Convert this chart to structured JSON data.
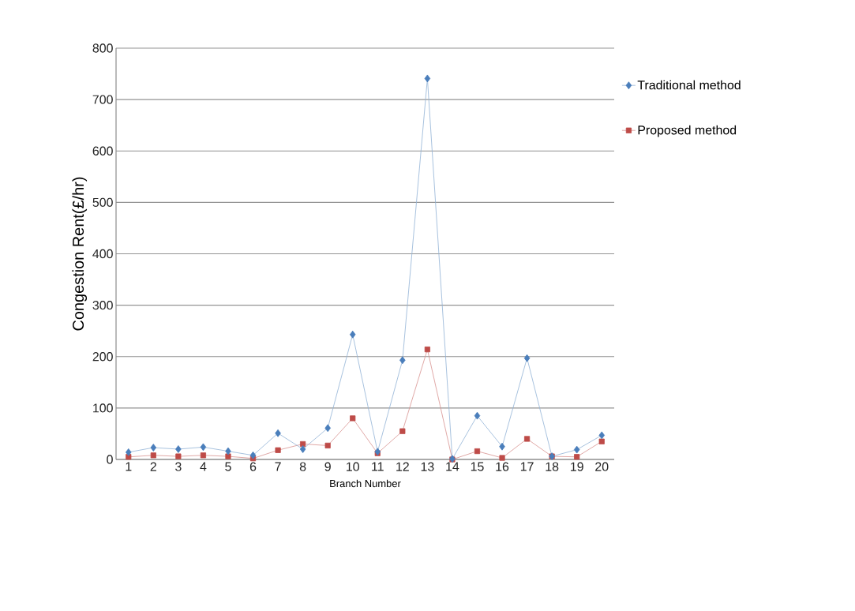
{
  "chart_data": {
    "type": "line",
    "xlabel": "Branch Number",
    "ylabel": "Congestion Rent(£/hr)",
    "categories": [
      "1",
      "2",
      "3",
      "4",
      "5",
      "6",
      "7",
      "8",
      "9",
      "10",
      "11",
      "12",
      "13",
      "14",
      "15",
      "16",
      "17",
      "18",
      "19",
      "20"
    ],
    "series": [
      {
        "name": "Traditional method",
        "color": "#4a7ebb",
        "marker": "diamond",
        "values": [
          14,
          23,
          20,
          24,
          16,
          8,
          51,
          20,
          61,
          243,
          15,
          193,
          741,
          1,
          85,
          25,
          197,
          6,
          19,
          47
        ]
      },
      {
        "name": "Proposed method",
        "color": "#be4b48",
        "marker": "square",
        "values": [
          5,
          8,
          6,
          8,
          6,
          2,
          18,
          30,
          27,
          80,
          12,
          55,
          214,
          0,
          16,
          3,
          40,
          6,
          5,
          35
        ]
      }
    ],
    "ylim": [
      0,
      800
    ],
    "yticks": [
      0,
      100,
      200,
      300,
      400,
      500,
      600,
      700,
      800
    ],
    "grid": "y",
    "legend": "right"
  }
}
